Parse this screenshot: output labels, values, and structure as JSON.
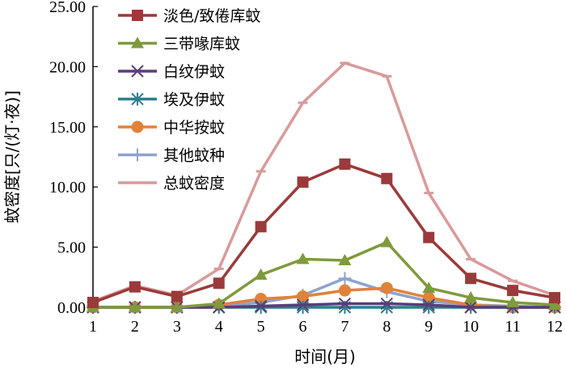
{
  "chart_data": {
    "type": "line",
    "xlabel": "时间(月)",
    "ylabel": "蚊密度[只/(灯·夜)]",
    "x": [
      1,
      2,
      3,
      4,
      5,
      6,
      7,
      8,
      9,
      10,
      11,
      12
    ],
    "x_tick_labels": [
      "1",
      "2",
      "3",
      "4",
      "5",
      "6",
      "7",
      "8",
      "9",
      "10",
      "11",
      "12"
    ],
    "xlim": [
      1,
      12
    ],
    "ylim": [
      0,
      25
    ],
    "y_ticks": [
      0,
      5,
      10,
      15,
      20,
      25
    ],
    "y_tick_labels": [
      "0.00",
      "5.00",
      "10.00",
      "15.00",
      "20.00",
      "25.00"
    ],
    "grid": false,
    "legend_position": "top-left",
    "series": [
      {
        "name": "淡色/致倦库蚊",
        "color": "#9b3a3a",
        "marker": "square",
        "values": [
          0.4,
          1.7,
          0.9,
          2.0,
          6.7,
          10.4,
          11.9,
          10.7,
          5.8,
          2.4,
          1.4,
          0.8
        ]
      },
      {
        "name": "三带喙库蚊",
        "color": "#7f9a3d",
        "marker": "triangle",
        "values": [
          0.0,
          0.0,
          0.0,
          0.3,
          2.7,
          4.0,
          3.9,
          5.4,
          1.6,
          0.8,
          0.4,
          0.2
        ]
      },
      {
        "name": "白纹伊蚊",
        "color": "#5a3d78",
        "marker": "x",
        "values": [
          0.0,
          0.0,
          0.0,
          0.0,
          0.1,
          0.2,
          0.3,
          0.3,
          0.2,
          0.0,
          0.0,
          0.0
        ]
      },
      {
        "name": "埃及伊蚊",
        "color": "#2e7f8e",
        "marker": "asterisk",
        "values": [
          0.0,
          0.0,
          0.0,
          0.0,
          0.0,
          0.0,
          0.0,
          0.0,
          0.0,
          0.0,
          0.0,
          0.0
        ]
      },
      {
        "name": "中华按蚊",
        "color": "#e0823a",
        "marker": "circle",
        "values": [
          0.0,
          0.0,
          0.0,
          0.2,
          0.7,
          0.9,
          1.4,
          1.6,
          0.8,
          0.2,
          0.0,
          0.0
        ]
      },
      {
        "name": "其他蚊种",
        "color": "#8ea3cf",
        "marker": "plus",
        "values": [
          0.0,
          0.0,
          0.0,
          0.1,
          0.4,
          1.0,
          2.4,
          1.3,
          0.5,
          0.2,
          0.1,
          0.0
        ]
      },
      {
        "name": "总蚊密度",
        "color": "#d99a9a",
        "marker": "dash",
        "values": [
          0.5,
          1.8,
          1.0,
          3.2,
          11.3,
          17.0,
          20.3,
          19.2,
          9.5,
          4.0,
          2.2,
          1.0
        ]
      }
    ]
  }
}
